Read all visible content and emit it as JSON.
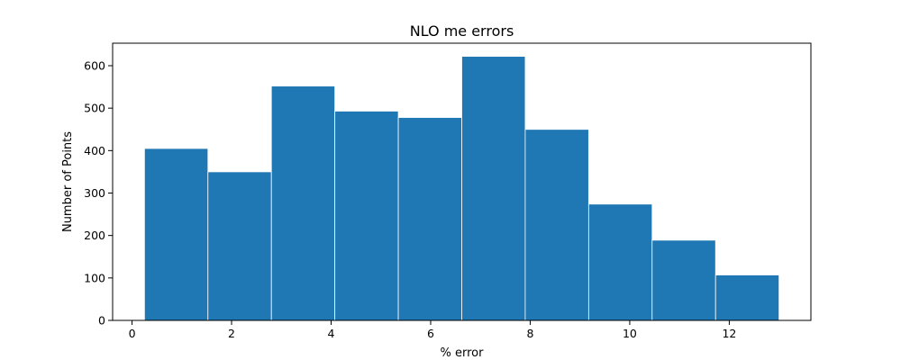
{
  "chart_data": {
    "type": "bar",
    "histogram": true,
    "title": "NLO me errors",
    "xlabel": "% error",
    "ylabel": "Number of Points",
    "bin_edges": [
      0.25,
      1.525,
      2.8,
      4.075,
      5.35,
      6.625,
      7.9,
      9.175,
      10.45,
      11.725,
      13.0
    ],
    "values": [
      405,
      350,
      552,
      493,
      478,
      622,
      450,
      274,
      189,
      107
    ],
    "xlim": [
      -0.39,
      13.64
    ],
    "ylim": [
      0,
      653
    ],
    "xticks": [
      0,
      2,
      4,
      6,
      8,
      10,
      12
    ],
    "yticks": [
      0,
      100,
      200,
      300,
      400,
      500,
      600
    ],
    "xtick_labels": [
      "0",
      "2",
      "4",
      "6",
      "8",
      "10",
      "12"
    ],
    "ytick_labels": [
      "0",
      "100",
      "200",
      "300",
      "400",
      "500",
      "600"
    ],
    "grid": false,
    "legend": "none",
    "colors": {
      "bar": "#1f77b4",
      "bar_edge": "#ffffff",
      "axes": "#000000",
      "background": "#ffffff"
    }
  }
}
